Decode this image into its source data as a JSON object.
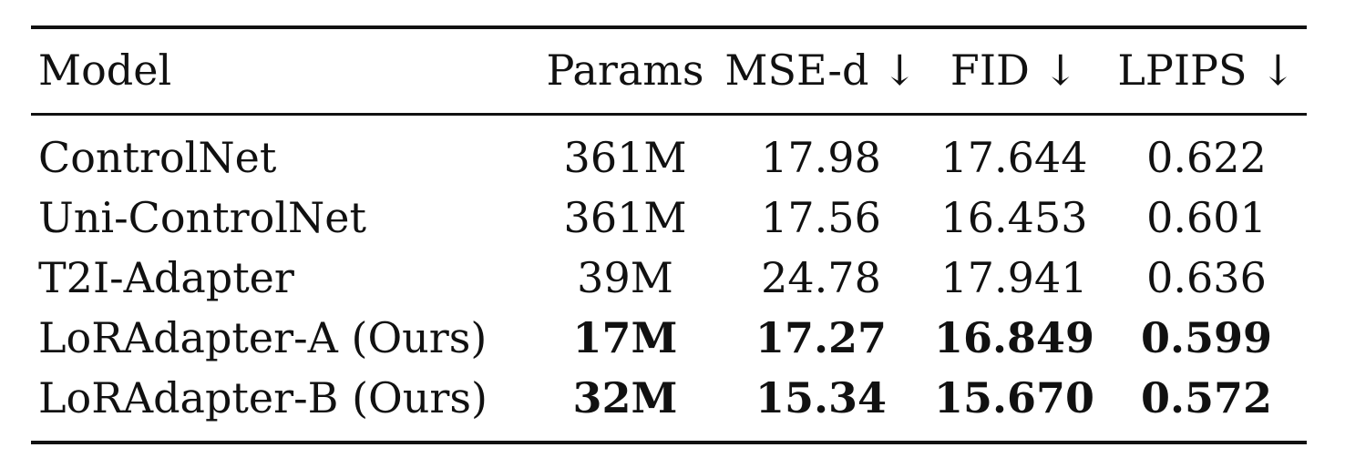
{
  "table": {
    "headers": {
      "model": "Model",
      "params": "Params",
      "mse": "MSE-d ↓",
      "fid": "FID ↓",
      "lpips": "LPIPS ↓"
    },
    "rows": [
      {
        "model": "ControlNet",
        "params": "361M",
        "mse": "17.98",
        "fid": "17.644",
        "lpips": "0.622",
        "bold": false
      },
      {
        "model": "Uni-ControlNet",
        "params": "361M",
        "mse": "17.56",
        "fid": "16.453",
        "lpips": "0.601",
        "bold": false
      },
      {
        "model": "T2I-Adapter",
        "params": "39M",
        "mse": "24.78",
        "fid": "17.941",
        "lpips": "0.636",
        "bold": false
      },
      {
        "model": "LoRAdapter-A (Ours)",
        "params": "17M",
        "mse": "17.27",
        "fid": "16.849",
        "lpips": "0.599",
        "bold": true
      },
      {
        "model": "LoRAdapter-B (Ours)",
        "params": "32M",
        "mse": "15.34",
        "fid": "15.670",
        "lpips": "0.572",
        "bold": true
      }
    ]
  }
}
